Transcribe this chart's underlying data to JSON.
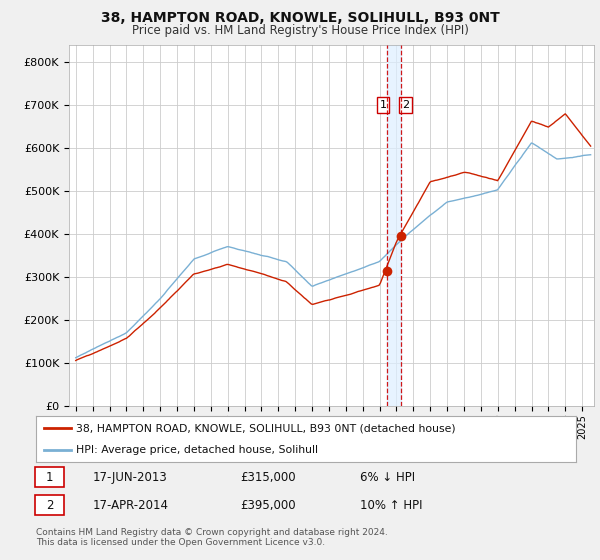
{
  "title": "38, HAMPTON ROAD, KNOWLE, SOLIHULL, B93 0NT",
  "subtitle": "Price paid vs. HM Land Registry's House Price Index (HPI)",
  "ylabel_ticks": [
    "£0",
    "£100K",
    "£200K",
    "£300K",
    "£400K",
    "£500K",
    "£600K",
    "£700K",
    "£800K"
  ],
  "ytick_values": [
    0,
    100000,
    200000,
    300000,
    400000,
    500000,
    600000,
    700000,
    800000
  ],
  "ylim": [
    0,
    840000
  ],
  "hpi_color": "#7ab0d4",
  "price_color": "#cc2200",
  "vline_color": "#cc0000",
  "shade_color": "#ddeeff",
  "transaction1_date_num": 2013.46,
  "transaction1_price": 315000,
  "transaction2_date_num": 2014.29,
  "transaction2_price": 395000,
  "legend_label1": "38, HAMPTON ROAD, KNOWLE, SOLIHULL, B93 0NT (detached house)",
  "legend_label2": "HPI: Average price, detached house, Solihull",
  "table_row1_num": "1",
  "table_row1_date": "17-JUN-2013",
  "table_row1_price": "£315,000",
  "table_row1_rel": "6% ↓ HPI",
  "table_row2_num": "2",
  "table_row2_date": "17-APR-2014",
  "table_row2_price": "£395,000",
  "table_row2_rel": "10% ↑ HPI",
  "footer": "Contains HM Land Registry data © Crown copyright and database right 2024.\nThis data is licensed under the Open Government Licence v3.0.",
  "bg_color": "#f0f0f0",
  "plot_bg_color": "#ffffff",
  "grid_color": "#cccccc"
}
